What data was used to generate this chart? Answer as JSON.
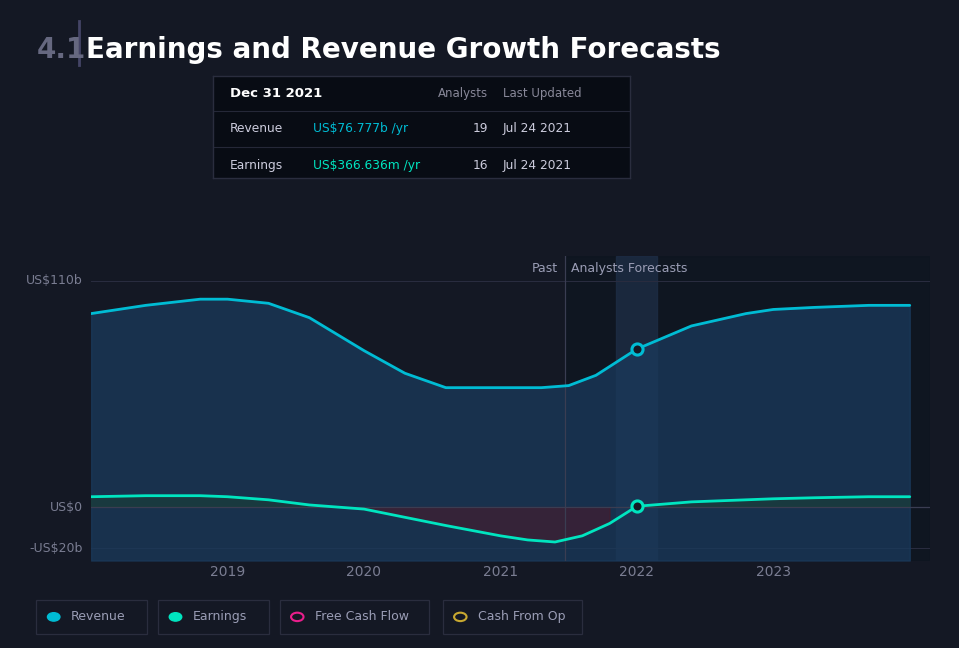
{
  "title": "Earnings and Revenue Growth Forecasts",
  "title_prefix": "4.1",
  "bg_color": "#141824",
  "plot_bg_color": "#141824",
  "ylabel_top": "US$110b",
  "ylabel_zero": "US$0",
  "ylabel_bottom": "-US$20b",
  "x_labels": [
    "2019",
    "2020",
    "2021",
    "2022",
    "2023"
  ],
  "past_label": "Past",
  "forecast_label": "Analysts Forecasts",
  "revenue_color": "#00bcd4",
  "revenue_fill_color": "#1a3a5c",
  "earnings_color": "#00e5c0",
  "earnings_fill_pos_color": "#1a3d3a",
  "earnings_neg_fill_color": "#4a1a2a",
  "free_cash_color": "#e91e8c",
  "cash_from_op_color": "#c8a830",
  "tooltip_bg": "#080c14",
  "tooltip_border": "#2a2d3e",
  "revenue_x": [
    2018.0,
    2018.4,
    2018.8,
    2019.0,
    2019.3,
    2019.6,
    2020.0,
    2020.3,
    2020.6,
    2021.0,
    2021.3,
    2021.5,
    2021.7,
    2022.0,
    2022.4,
    2022.8,
    2023.0,
    2023.3,
    2023.7,
    2024.0
  ],
  "revenue_y": [
    94,
    98,
    101,
    101,
    99,
    92,
    76,
    65,
    58,
    58,
    58,
    59,
    64,
    76.777,
    88,
    94,
    96,
    97,
    98,
    98
  ],
  "earnings_x": [
    2018.0,
    2018.4,
    2018.8,
    2019.0,
    2019.3,
    2019.6,
    2020.0,
    2020.3,
    2020.6,
    2021.0,
    2021.2,
    2021.4,
    2021.6,
    2021.8,
    2022.0,
    2022.4,
    2022.8,
    2023.0,
    2023.3,
    2023.7,
    2024.0
  ],
  "earnings_y": [
    5,
    5.5,
    5.5,
    5,
    3.5,
    1,
    -1,
    -5,
    -9,
    -14,
    -16,
    -17,
    -14,
    -8,
    0.366,
    2.5,
    3.5,
    4,
    4.5,
    5,
    5
  ],
  "xmin": 2018.0,
  "xmax": 2024.15,
  "ymin": -26,
  "ymax": 122,
  "divider_xval": 2021.47,
  "highlight_xval1": 2021.85,
  "highlight_xval2": 2022.15,
  "dot_revenue_x": 2022.0,
  "dot_revenue_y": 76.777,
  "dot_earnings_x": 2022.0,
  "dot_earnings_y": 0.366,
  "legend_items": [
    {
      "label": "Revenue",
      "color": "#00bcd4",
      "filled": true
    },
    {
      "label": "Earnings",
      "color": "#00e5c0",
      "filled": true
    },
    {
      "label": "Free Cash Flow",
      "color": "#e91e8c",
      "filled": false
    },
    {
      "label": "Cash From Op",
      "color": "#c8a830",
      "filled": false
    }
  ],
  "tooltip": {
    "date": "Dec 31 2021",
    "analysts_label": "Analysts",
    "last_updated_label": "Last Updated",
    "rows": [
      {
        "label": "Revenue",
        "value": "US$76.777b /yr",
        "analysts": "19",
        "updated": "Jul 24 2021",
        "value_color": "#00bcd4"
      },
      {
        "label": "Earnings",
        "value": "US$366.636m /yr",
        "analysts": "16",
        "updated": "Jul 24 2021",
        "value_color": "#00e5c0"
      }
    ]
  }
}
